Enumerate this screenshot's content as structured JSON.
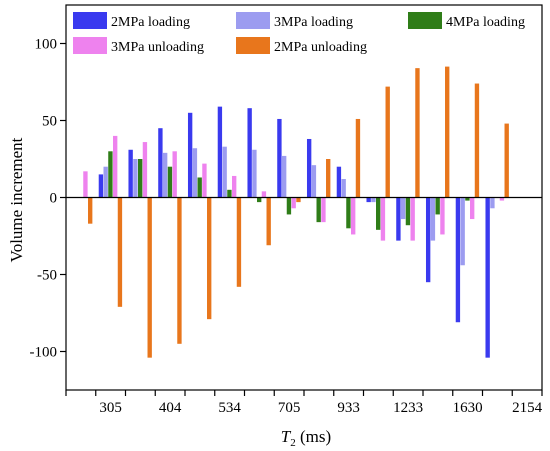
{
  "chart_data": {
    "type": "bar",
    "xlabel_main": "T",
    "xlabel_sub": "2",
    "xlabel_unit": " (ms)",
    "ylabel": "Volume increment",
    "ylim": [
      -125,
      125
    ],
    "yticks": [
      -100,
      -50,
      0,
      50,
      100
    ],
    "legend_position": "top",
    "categories": [
      "",
      "305",
      "",
      "404",
      "",
      "534",
      "",
      "705",
      "",
      "933",
      "",
      "1233",
      "",
      "1630",
      "",
      "2154"
    ],
    "series": [
      {
        "name": "2MPa loading",
        "color": "#3a3aef",
        "values": [
          0,
          15,
          31,
          45,
          55,
          59,
          58,
          51,
          38,
          20,
          -3,
          -28,
          -55,
          -81,
          -104,
          0
        ]
      },
      {
        "name": "3MPa loading",
        "color": "#9c9cf0",
        "values": [
          0,
          20,
          25,
          29,
          32,
          33,
          31,
          27,
          21,
          12,
          -3,
          -14,
          -28,
          -44,
          -7,
          0
        ]
      },
      {
        "name": "4MPa loading",
        "color": "#2f7d18",
        "values": [
          0,
          30,
          25,
          20,
          13,
          5,
          -3,
          -11,
          -16,
          -20,
          -21,
          -18,
          -11,
          -2,
          0,
          0
        ]
      },
      {
        "name": "3MPa unloading",
        "color": "#ee82ee",
        "values": [
          17,
          40,
          36,
          30,
          22,
          14,
          4,
          -7,
          -16,
          -24,
          -28,
          -28,
          -24,
          -14,
          -2,
          0
        ]
      },
      {
        "name": "2MPa unloading",
        "color": "#e8761c",
        "values": [
          -17,
          -71,
          -104,
          -95,
          -79,
          -58,
          -31,
          -3,
          25,
          51,
          72,
          84,
          85,
          74,
          48,
          0
        ]
      }
    ]
  }
}
